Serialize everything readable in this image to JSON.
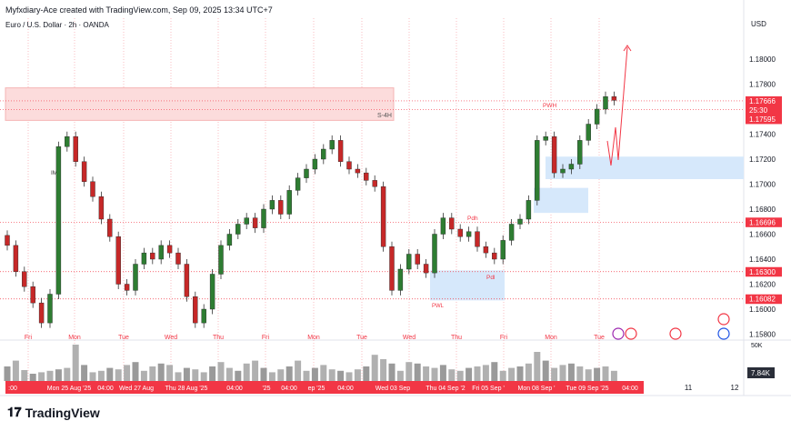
{
  "header": {
    "attribution": "Myfxdiary-Ace created with TradingView.com, Sep 09, 2025 13:34 UTC+7",
    "symbol": "Euro / U.S. Dollar · 2h · OANDA"
  },
  "colors": {
    "up": "#2e7d32",
    "down": "#c62828",
    "accent": "#f23645",
    "zone_red": "#fcdcdc",
    "zone_blue": "#d6e8fb",
    "volume": "#b0b0b0"
  },
  "chart_data": {
    "type": "candlestick",
    "currency": "USD",
    "ylim": [
      1.158,
      1.182
    ],
    "y_ticks": [
      "1.18000",
      "1.17800",
      "1.17400",
      "1.17200",
      "1.17000",
      "1.16800",
      "1.16600",
      "1.16400",
      "1.16200",
      "1.16000",
      "1.15800"
    ],
    "price_labels": [
      {
        "text": "1.17666",
        "value": 1.17666
      },
      {
        "text": "25:30",
        "value": 1.1763
      },
      {
        "text": "1.17595",
        "value": 1.17595
      },
      {
        "text": "1.16696",
        "value": 1.16696
      },
      {
        "text": "1.16300",
        "value": 1.163
      },
      {
        "text": "1.16082",
        "value": 1.16082
      }
    ],
    "closes": [
      1.1651,
      1.163,
      1.1618,
      1.1605,
      1.1589,
      1.1612,
      1.173,
      1.1738,
      1.1718,
      1.1702,
      1.169,
      1.1672,
      1.1658,
      1.162,
      1.1615,
      1.1636,
      1.1645,
      1.164,
      1.1651,
      1.1645,
      1.1636,
      1.161,
      1.1589,
      1.16,
      1.1628,
      1.1651,
      1.166,
      1.1668,
      1.1673,
      1.1665,
      1.168,
      1.1687,
      1.1676,
      1.1695,
      1.1705,
      1.1712,
      1.172,
      1.1728,
      1.1735,
      1.1718,
      1.1712,
      1.1709,
      1.1703,
      1.1698,
      1.165,
      1.1615,
      1.1632,
      1.1644,
      1.1636,
      1.1629,
      1.166,
      1.1673,
      1.1664,
      1.1658,
      1.1662,
      1.165,
      1.1645,
      1.164,
      1.1655,
      1.1668,
      1.1672,
      1.1687,
      1.1735,
      1.1738,
      1.1709,
      1.1712,
      1.1716,
      1.1735,
      1.1748,
      1.176,
      1.177,
      1.1767
    ],
    "volumes": [
      20,
      28,
      15,
      10,
      12,
      14,
      16,
      18,
      50,
      22,
      12,
      14,
      18,
      16,
      22,
      26,
      14,
      20,
      24,
      22,
      12,
      18,
      16,
      12,
      20,
      26,
      18,
      14,
      24,
      28,
      18,
      12,
      16,
      20,
      28,
      14,
      18,
      22,
      16,
      14,
      12,
      16,
      20,
      36,
      30,
      24,
      14,
      26,
      24,
      20,
      18,
      22,
      16,
      14,
      18,
      20,
      22,
      26,
      14,
      18,
      20,
      24,
      40,
      28,
      18,
      22,
      24,
      20,
      16,
      18,
      20,
      14
    ],
    "volume_scale": "50K",
    "volume_label": "7.84K",
    "day_labels": [
      "Fri",
      "Mon",
      "Tue",
      "Wed",
      "Thu",
      "Fri",
      "Mon",
      "Tue",
      "Wed",
      "Thu",
      "Fri",
      "Mon",
      "Tue"
    ],
    "time_labels": [
      ":00",
      "Mon 25 Aug '25",
      "04:00",
      "Wed 27 Aug",
      "Thu 28 Aug '25",
      "04:00",
      "'25",
      "04:00",
      "ep '25",
      "04:00",
      "Wed 03 Sep",
      "Thu 04 Sep '2",
      "Fri 05 Sep '",
      "Mon 08 Sep '",
      "Tue 09 Sep '25",
      "04:00"
    ],
    "future_labels": [
      "11",
      "12"
    ],
    "zones": [
      {
        "label": "S-4H",
        "kind": "supply",
        "top": 1.1777,
        "bottom": 1.1751
      },
      {
        "label": "PWL",
        "kind": "demand",
        "top": 1.1631,
        "bottom": 1.1607
      },
      {
        "label": "",
        "kind": "demand",
        "top": 1.1697,
        "bottom": 1.1677
      },
      {
        "label": "",
        "kind": "demand",
        "top": 1.1722,
        "bottom": 1.1704
      }
    ],
    "annotations": [
      "IM",
      "Pdh",
      "Pdl",
      "PWH"
    ]
  },
  "footer": {
    "brand": "TradingView"
  }
}
